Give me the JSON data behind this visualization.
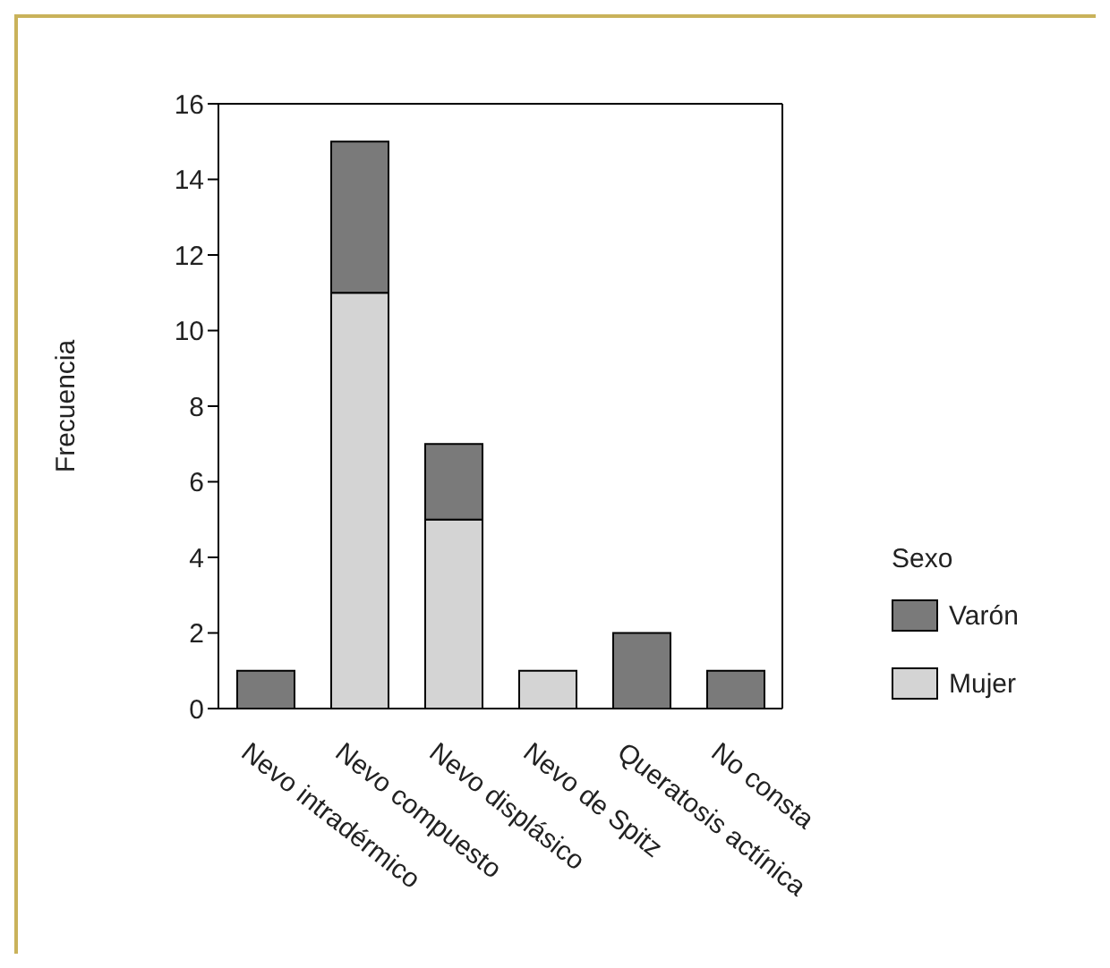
{
  "chart_data": {
    "type": "bar",
    "stacked": true,
    "ylabel": "Frecuencia",
    "legend_title": "Sexo",
    "legend": "right",
    "categories": [
      "Nevo intradérmico",
      "Nevo compuesto",
      "Nevo displásico",
      "Nevo de Spitz",
      "Queratosis actínica",
      "No consta"
    ],
    "series": [
      {
        "name": "Mujer",
        "color": "#d4d4d4",
        "values": [
          0,
          11,
          5,
          1,
          0,
          0
        ]
      },
      {
        "name": "Varón",
        "color": "#7a7a7a",
        "values": [
          1,
          4,
          2,
          0,
          2,
          1
        ]
      }
    ],
    "ylim": [
      0,
      16
    ],
    "yticks": [
      0,
      2,
      4,
      6,
      8,
      10,
      12,
      14,
      16
    ],
    "grid": false
  }
}
